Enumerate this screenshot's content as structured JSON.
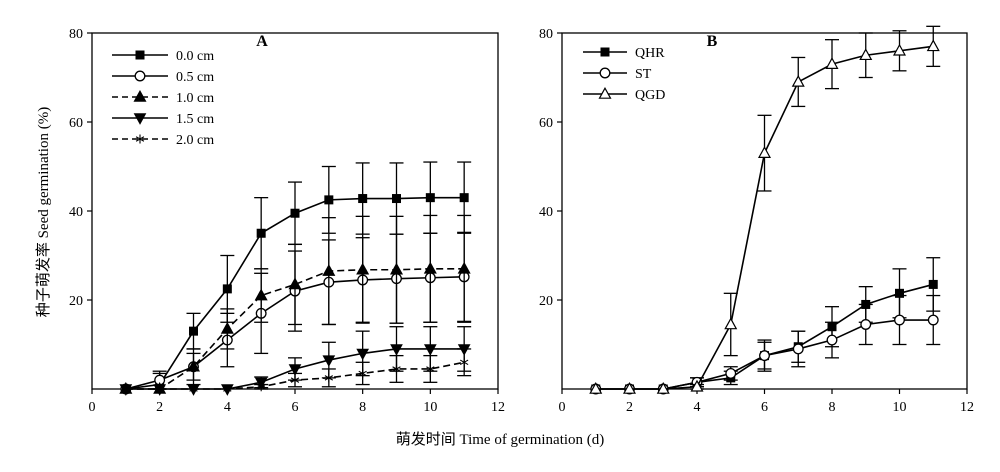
{
  "figure": {
    "shared_xlabel": "萌发时间  Time of germination (d)",
    "ylabel": "种子萌发率 Seed germination (%)"
  },
  "chart_data": [
    {
      "type": "line",
      "panel_label": "A",
      "xlim": [
        0,
        12
      ],
      "ylim": [
        0,
        80
      ],
      "xticks": [
        0,
        2,
        4,
        6,
        8,
        10,
        12
      ],
      "yticks": [
        20,
        40,
        60,
        80
      ],
      "legend_position": "top-left",
      "grid": false,
      "series": [
        {
          "name": "0.0 cm",
          "marker": "square-filled",
          "dash": "solid",
          "x": [
            1,
            2,
            3,
            4,
            5,
            6,
            7,
            8,
            9,
            10,
            11
          ],
          "y": [
            0,
            1,
            13,
            22.5,
            35,
            39.5,
            42.5,
            42.8,
            42.8,
            43,
            43
          ],
          "err": [
            0,
            2.5,
            4,
            7.5,
            8,
            7,
            7.5,
            8,
            8,
            8,
            8
          ]
        },
        {
          "name": "0.5 cm",
          "marker": "circle-open",
          "dash": "solid",
          "x": [
            1,
            2,
            3,
            4,
            5,
            6,
            7,
            8,
            9,
            10,
            11
          ],
          "y": [
            0,
            2,
            5,
            11,
            17,
            22,
            24,
            24.5,
            24.8,
            25,
            25.2
          ],
          "err": [
            0,
            2,
            3,
            6,
            9,
            9,
            9.5,
            9.5,
            10,
            10,
            10
          ]
        },
        {
          "name": "1.0 cm",
          "marker": "triangle-up-filled",
          "dash": "dashed",
          "x": [
            1,
            2,
            3,
            4,
            5,
            6,
            7,
            8,
            9,
            10,
            11
          ],
          "y": [
            0,
            0,
            5,
            13.5,
            21,
            23.5,
            26.5,
            26.8,
            26.8,
            27,
            27
          ],
          "err": [
            0,
            0,
            4,
            4.5,
            6,
            9,
            12,
            12,
            12,
            12,
            12
          ]
        },
        {
          "name": "1.5 cm",
          "marker": "triangle-down-filled",
          "dash": "solid",
          "x": [
            1,
            2,
            3,
            4,
            5,
            6,
            7,
            8,
            9,
            10,
            11
          ],
          "y": [
            0,
            0,
            0,
            0,
            1.5,
            4.5,
            6.5,
            8,
            9,
            9,
            9
          ],
          "err": [
            0,
            0,
            0,
            0,
            1.2,
            2.5,
            4,
            5,
            5,
            5,
            5
          ]
        },
        {
          "name": "2.0 cm",
          "marker": "asterisk",
          "dash": "dashed",
          "x": [
            1,
            2,
            3,
            4,
            5,
            6,
            7,
            8,
            9,
            10,
            11
          ],
          "y": [
            0,
            0,
            0,
            0,
            0.5,
            2,
            2.5,
            3.5,
            4.5,
            4.5,
            6
          ],
          "err": [
            0,
            0,
            0,
            0,
            0.5,
            1.5,
            2,
            2.5,
            3,
            3,
            3
          ]
        }
      ]
    },
    {
      "type": "line",
      "panel_label": "B",
      "xlim": [
        0,
        12
      ],
      "ylim": [
        0,
        80
      ],
      "xticks": [
        0,
        2,
        4,
        6,
        8,
        10,
        12
      ],
      "yticks": [
        20,
        40,
        60,
        80
      ],
      "legend_position": "top-left",
      "grid": false,
      "series": [
        {
          "name": "QHR",
          "marker": "square-filled",
          "dash": "solid",
          "x": [
            1,
            2,
            3,
            4,
            5,
            6,
            7,
            8,
            9,
            10,
            11
          ],
          "y": [
            0,
            0,
            0,
            1.5,
            2.5,
            7.5,
            9.5,
            14,
            19,
            21.5,
            23.5
          ],
          "err": [
            0,
            0,
            0,
            1,
            1.5,
            3,
            3.5,
            4.5,
            4,
            5.5,
            6
          ]
        },
        {
          "name": "ST",
          "marker": "circle-open",
          "dash": "solid",
          "x": [
            1,
            2,
            3,
            4,
            5,
            6,
            7,
            8,
            9,
            10,
            11
          ],
          "y": [
            0,
            0,
            0,
            1.5,
            3.5,
            7.5,
            9,
            11,
            14.5,
            15.5,
            15.5
          ],
          "err": [
            0,
            0,
            0,
            1,
            1.5,
            3.5,
            4,
            4,
            4.5,
            5.5,
            5.5
          ]
        },
        {
          "name": "QGD",
          "marker": "triangle-up-open",
          "dash": "solid",
          "x": [
            1,
            2,
            3,
            4,
            5,
            6,
            7,
            8,
            9,
            10,
            11
          ],
          "y": [
            0,
            0,
            0,
            0.5,
            14.5,
            53,
            69,
            73,
            75,
            76,
            77
          ],
          "err": [
            0,
            0,
            0,
            0.5,
            7,
            8.5,
            5.5,
            5.5,
            5,
            4.5,
            4.5
          ]
        }
      ]
    }
  ]
}
